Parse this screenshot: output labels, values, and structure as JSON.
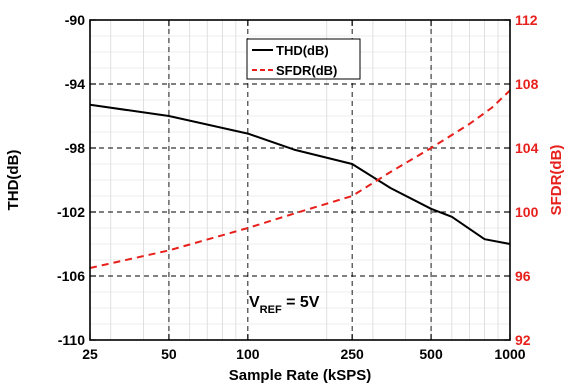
{
  "chart_data": {
    "type": "line",
    "xlabel": "Sample Rate (kSPS)",
    "ylabel": "THD(dB)",
    "y2label": "SFDR(dB)",
    "x_scale": "log",
    "xlim": [
      25,
      1000
    ],
    "x_ticks": [
      25,
      50,
      100,
      250,
      500,
      1000
    ],
    "x_tick_labels": [
      "25",
      "50",
      "100",
      "250",
      "500",
      "1000"
    ],
    "ylim": [
      -110,
      -90
    ],
    "y_ticks": [
      -110,
      -106,
      -102,
      -98,
      -94,
      -90
    ],
    "y_tick_labels": [
      "-110",
      "-106",
      "-102",
      "-98",
      "-94",
      "-90"
    ],
    "y2lim": [
      92,
      112
    ],
    "y2_ticks": [
      92,
      96,
      100,
      104,
      108,
      112
    ],
    "y2_tick_labels": [
      "92",
      "96",
      "100",
      "104",
      "108",
      "112"
    ],
    "grid": true,
    "legend_position": "top-center",
    "series": [
      {
        "name": "THD(dB)",
        "axis": "left",
        "color": "#000000",
        "style": "solid",
        "x": [
          25,
          50,
          100,
          150,
          250,
          350,
          500,
          600,
          800,
          1000
        ],
        "y": [
          -95.3,
          -96.0,
          -97.1,
          -98.1,
          -99.0,
          -100.5,
          -101.8,
          -102.3,
          -103.7,
          -104.0
        ]
      },
      {
        "name": "SFDR(dB)",
        "axis": "right",
        "color": "#e8201c",
        "style": "dashed",
        "x": [
          25,
          50,
          100,
          150,
          250,
          350,
          500,
          700,
          850,
          1000
        ],
        "y": [
          96.5,
          97.6,
          99.0,
          99.9,
          101.0,
          102.5,
          104.0,
          105.5,
          106.5,
          107.6
        ]
      }
    ],
    "annotation": {
      "prefix": "V",
      "subscript": "REF",
      "suffix": " = 5V"
    }
  }
}
